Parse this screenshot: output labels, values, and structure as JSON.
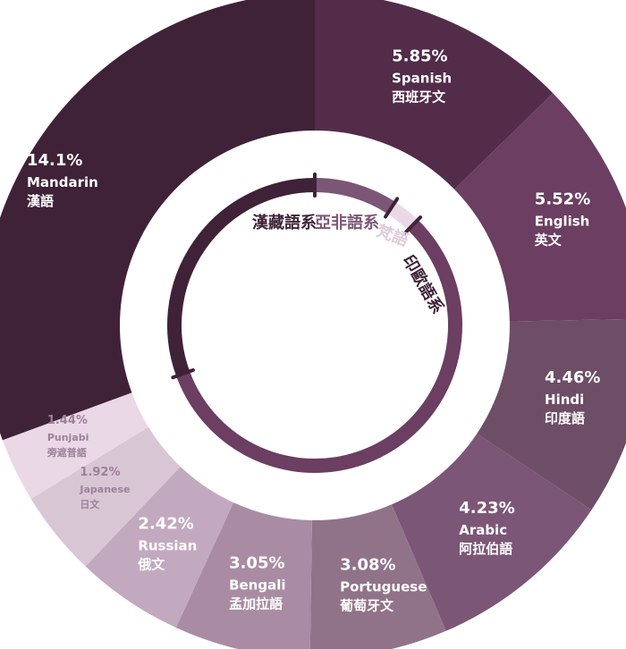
{
  "chart_data": {
    "type": "pie",
    "title": "",
    "series": [
      {
        "pct": "5.85%",
        "en": "Spanish",
        "zh": "西班牙文",
        "value": 5.85,
        "color": "#522c49"
      },
      {
        "pct": "5.52%",
        "en": "English",
        "zh": "英文",
        "value": 5.52,
        "color": "#6b3e62"
      },
      {
        "pct": "4.46%",
        "en": "Hindi",
        "zh": "印度語",
        "value": 4.46,
        "color": "#6e4d66"
      },
      {
        "pct": "4.23%",
        "en": "Arabic",
        "zh": "阿拉伯語",
        "value": 4.23,
        "color": "#7c5676"
      },
      {
        "pct": "3.08%",
        "en": "Portuguese",
        "zh": "葡萄牙文",
        "value": 3.08,
        "color": "#917389"
      },
      {
        "pct": "3.05%",
        "en": "Bengali",
        "zh": "孟加拉語",
        "value": 3.05,
        "color": "#a98ca3"
      },
      {
        "pct": "2.42%",
        "en": "Russian",
        "zh": "俄文",
        "value": 2.42,
        "color": "#c2a9bf"
      },
      {
        "pct": "1.92%",
        "en": "Japanese",
        "zh": "日文",
        "value": 1.92,
        "color": "#d8c6d5"
      },
      {
        "pct": "1.44%",
        "en": "Punjabi",
        "zh": "旁遮普語",
        "value": 1.44,
        "color": "#ead8e7"
      },
      {
        "pct": "14.1%",
        "en": "Mandarin",
        "zh": "漢語",
        "value": 14.1,
        "color": "#3f2238"
      }
    ],
    "families": [
      {
        "name": "漢藏語系",
        "value": 14.1,
        "color": "#3f2238"
      },
      {
        "name": "亞非語系",
        "value": 4.23,
        "color": "#7c5676"
      },
      {
        "name": "梵語",
        "value": 1.44,
        "color": "#ead8e7"
      },
      {
        "name": "印歐語系",
        "value": 30.34,
        "color": "#6b3e62"
      }
    ]
  }
}
